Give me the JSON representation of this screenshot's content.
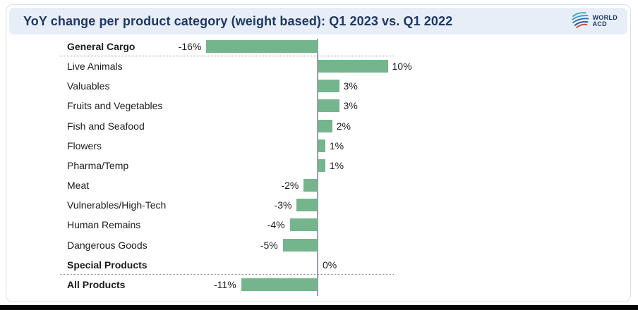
{
  "header": {
    "title": "YoY change per product category (weight based): Q1 2023 vs. Q1 2022",
    "logo": {
      "line1": "WORLD",
      "line2": "ACD"
    }
  },
  "colors": {
    "bar": "#74b58d",
    "header_bg": "#e8eef7",
    "title_text": "#1f3864",
    "axis": "#99a0a8",
    "separator": "#8f959c",
    "logo_red": "#d14b41",
    "logo_teal": "#45a5b0",
    "logo_blue": "#2e6fb0"
  },
  "chart_data": {
    "type": "bar",
    "orientation": "horizontal",
    "title": "YoY change per product category (weight based): Q1 2023 vs. Q1 2022",
    "value_suffix": "%",
    "xlim": [
      -16,
      10
    ],
    "grid": false,
    "legend": null,
    "categories": [
      "General Cargo",
      "Live Animals",
      "Valuables",
      "Fruits and Vegetables",
      "Fish and Seafood",
      "Flowers",
      "Pharma/Temp",
      "Meat",
      "Vulnerables/High-Tech",
      "Human Remains",
      "Dangerous Goods",
      "Special Products",
      "All Products"
    ],
    "values": [
      -16,
      10,
      3,
      3,
      2,
      1,
      1,
      -2,
      -3,
      -4,
      -5,
      0,
      -11
    ],
    "rows": [
      {
        "label": "General Cargo",
        "value": -16,
        "display": "-16%",
        "bold": true,
        "separator_after": true
      },
      {
        "label": "Live Animals",
        "value": 10,
        "display": "10%",
        "bold": false,
        "separator_after": false
      },
      {
        "label": "Valuables",
        "value": 3,
        "display": "3%",
        "bold": false,
        "separator_after": false
      },
      {
        "label": "Fruits and Vegetables",
        "value": 3,
        "display": "3%",
        "bold": false,
        "separator_after": false
      },
      {
        "label": "Fish and Seafood",
        "value": 2,
        "display": "2%",
        "bold": false,
        "separator_after": false
      },
      {
        "label": "Flowers",
        "value": 1,
        "display": "1%",
        "bold": false,
        "separator_after": false
      },
      {
        "label": "Pharma/Temp",
        "value": 1,
        "display": "1%",
        "bold": false,
        "separator_after": false
      },
      {
        "label": "Meat",
        "value": -2,
        "display": "-2%",
        "bold": false,
        "separator_after": false
      },
      {
        "label": "Vulnerables/High-Tech",
        "value": -3,
        "display": "-3%",
        "bold": false,
        "separator_after": false
      },
      {
        "label": "Human Remains",
        "value": -4,
        "display": "-4%",
        "bold": false,
        "separator_after": false
      },
      {
        "label": "Dangerous Goods",
        "value": -5,
        "display": "-5%",
        "bold": false,
        "separator_after": false
      },
      {
        "label": "Special Products",
        "value": 0,
        "display": "0%",
        "bold": true,
        "separator_after": true
      },
      {
        "label": "All Products",
        "value": -11,
        "display": "-11%",
        "bold": true,
        "separator_after": false
      }
    ]
  }
}
